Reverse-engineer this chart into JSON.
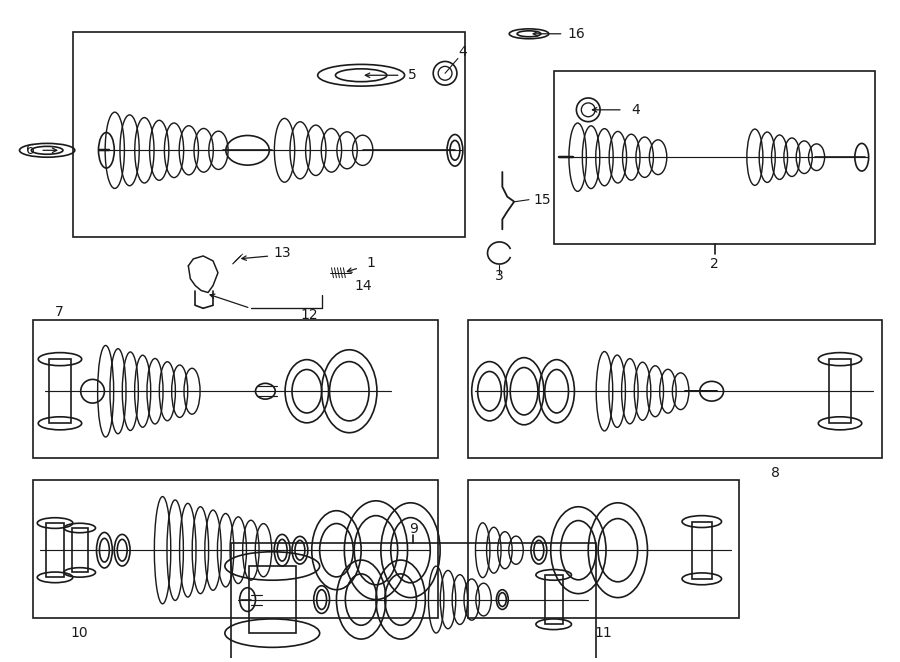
{
  "bg_color": "#ffffff",
  "line_color": "#1a1a1a",
  "fig_width": 9.0,
  "fig_height": 6.62,
  "dpi": 100,
  "lw": 1.2
}
